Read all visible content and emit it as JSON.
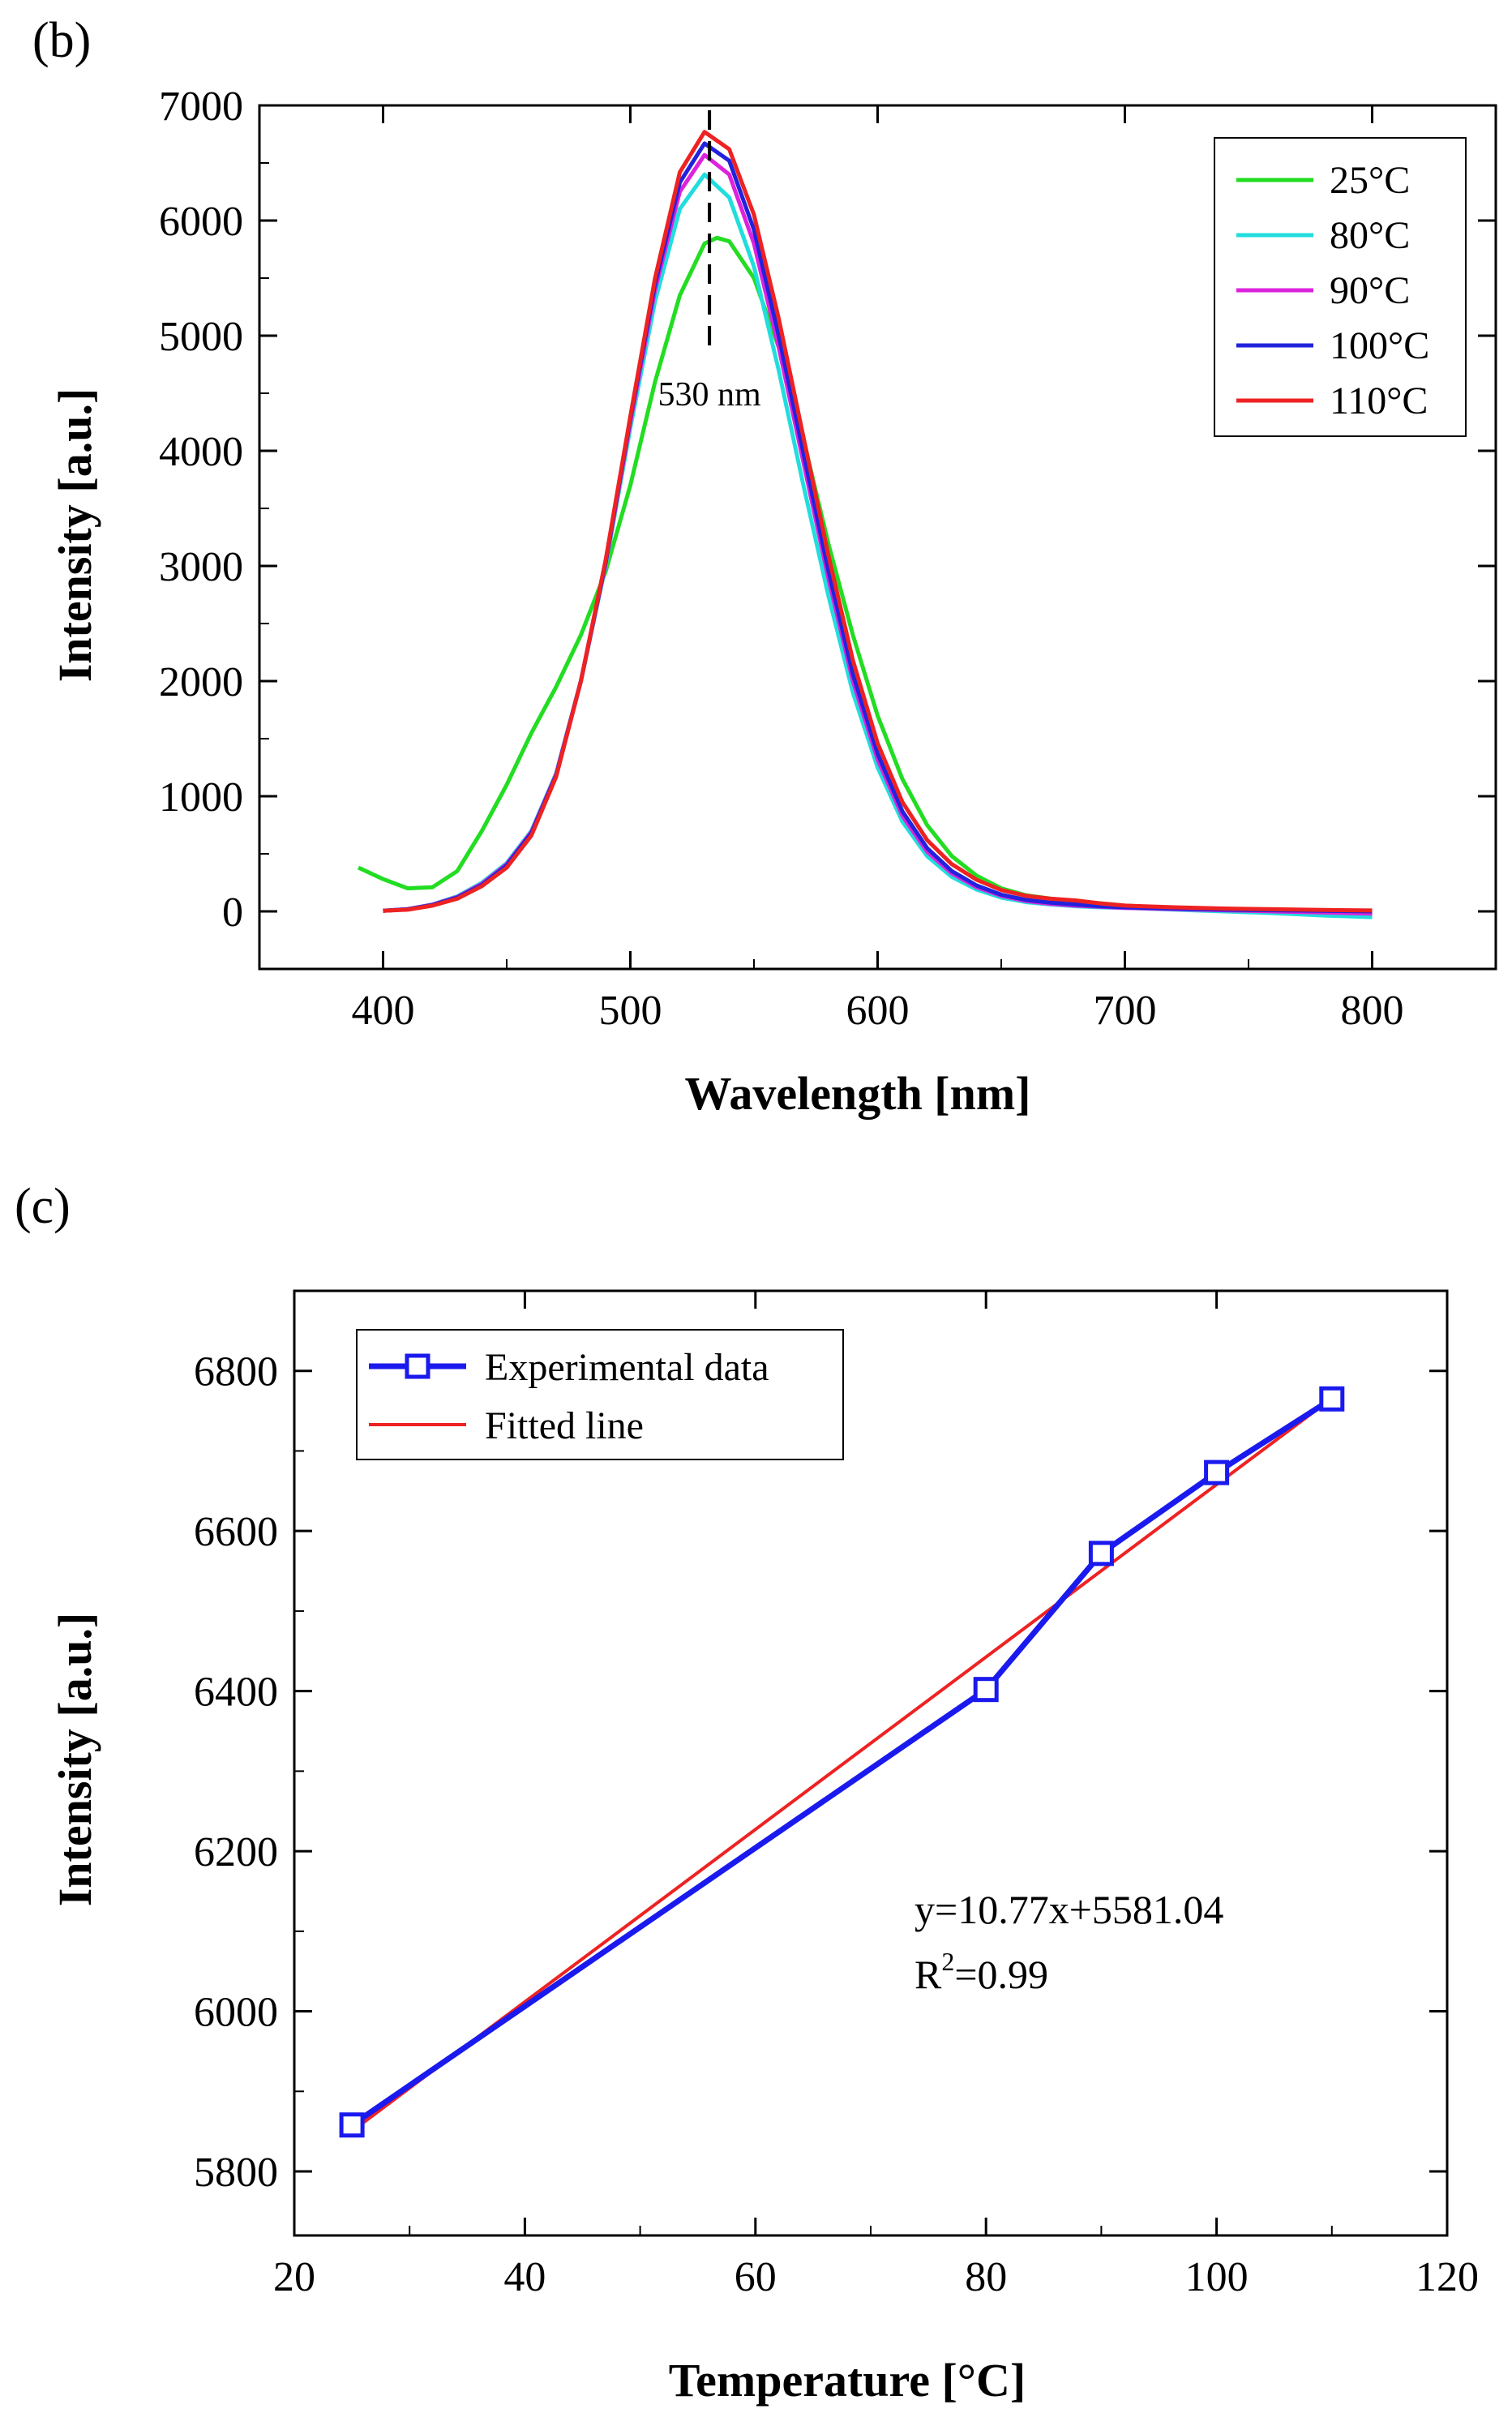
{
  "panel_b_label": "(b)",
  "panel_c_label": "(c)",
  "chart_data": [
    {
      "id": "b",
      "type": "line",
      "title": "",
      "xlabel": "Wavelength [nm]",
      "ylabel": "Intensity [a.u.]",
      "xlim": [
        350,
        850
      ],
      "ylim": [
        -500,
        7000
      ],
      "xticks": [
        400,
        500,
        600,
        700,
        800
      ],
      "xtick_labels": [
        "400",
        "500",
        "600",
        "700",
        "800"
      ],
      "yticks": [
        0,
        1000,
        2000,
        3000,
        4000,
        5000,
        6000,
        7000
      ],
      "ytick_labels": [
        "0",
        "1000",
        "2000",
        "3000",
        "4000",
        "5000",
        "6000",
        "7000"
      ],
      "annotation": {
        "text": "530 nm",
        "x": 532
      },
      "legend_position": "top-right",
      "series": [
        {
          "name": "25°C",
          "color": "#22dd22",
          "x": [
            390,
            400,
            410,
            420,
            430,
            440,
            450,
            460,
            470,
            480,
            490,
            500,
            510,
            520,
            530,
            535,
            540,
            550,
            560,
            570,
            580,
            590,
            600,
            610,
            620,
            630,
            640,
            650,
            660,
            670,
            680,
            690,
            700,
            720,
            740,
            760,
            780,
            800
          ],
          "values": [
            380,
            280,
            200,
            210,
            350,
            700,
            1100,
            1550,
            1950,
            2400,
            2950,
            3700,
            4600,
            5350,
            5800,
            5850,
            5820,
            5500,
            4900,
            4100,
            3200,
            2400,
            1700,
            1150,
            750,
            480,
            310,
            200,
            140,
            110,
            90,
            70,
            50,
            30,
            20,
            15,
            10,
            5
          ]
        },
        {
          "name": "80°C",
          "color": "#22dddd",
          "x": [
            400,
            410,
            420,
            430,
            440,
            450,
            460,
            470,
            480,
            490,
            500,
            510,
            520,
            530,
            540,
            550,
            560,
            570,
            580,
            590,
            600,
            610,
            620,
            630,
            640,
            650,
            660,
            670,
            680,
            690,
            700,
            720,
            740,
            760,
            780,
            800
          ],
          "values": [
            5,
            20,
            60,
            130,
            250,
            420,
            700,
            1200,
            2000,
            3000,
            4200,
            5300,
            6100,
            6400,
            6200,
            5600,
            4700,
            3700,
            2750,
            1900,
            1250,
            780,
            480,
            300,
            190,
            120,
            80,
            60,
            45,
            35,
            30,
            15,
            0,
            -15,
            -35,
            -50
          ]
        },
        {
          "name": "90°C",
          "color": "#dd22dd",
          "x": [
            400,
            410,
            420,
            430,
            440,
            450,
            460,
            470,
            480,
            490,
            500,
            510,
            520,
            530,
            540,
            550,
            560,
            570,
            580,
            590,
            600,
            610,
            620,
            630,
            640,
            650,
            660,
            670,
            680,
            690,
            700,
            720,
            740,
            760,
            780,
            800
          ],
          "values": [
            5,
            20,
            58,
            125,
            240,
            410,
            690,
            1190,
            2000,
            3020,
            4250,
            5400,
            6250,
            6570,
            6400,
            5800,
            4900,
            3900,
            2900,
            2000,
            1320,
            830,
            520,
            330,
            210,
            135,
            90,
            65,
            50,
            40,
            30,
            20,
            10,
            0,
            -10,
            -20
          ]
        },
        {
          "name": "100°C",
          "color": "#2222dd",
          "x": [
            400,
            410,
            420,
            430,
            440,
            450,
            460,
            470,
            480,
            490,
            500,
            510,
            520,
            530,
            540,
            550,
            560,
            570,
            580,
            590,
            600,
            610,
            620,
            630,
            640,
            650,
            660,
            670,
            680,
            690,
            700,
            720,
            740,
            760,
            780,
            800
          ],
          "values": [
            5,
            18,
            55,
            120,
            230,
            400,
            680,
            1180,
            2000,
            3030,
            4280,
            5450,
            6330,
            6670,
            6520,
            5920,
            5000,
            3980,
            2970,
            2060,
            1370,
            870,
            550,
            350,
            225,
            145,
            100,
            75,
            60,
            45,
            35,
            25,
            15,
            10,
            5,
            0
          ]
        },
        {
          "name": "110°C",
          "color": "#ee2222",
          "x": [
            400,
            410,
            420,
            430,
            440,
            450,
            460,
            470,
            480,
            490,
            500,
            510,
            520,
            530,
            540,
            550,
            560,
            570,
            580,
            590,
            600,
            610,
            620,
            630,
            640,
            650,
            660,
            670,
            680,
            690,
            700,
            720,
            740,
            760,
            780,
            800
          ],
          "values": [
            5,
            15,
            50,
            110,
            220,
            380,
            660,
            1170,
            2000,
            3050,
            4300,
            5500,
            6420,
            6770,
            6620,
            6050,
            5150,
            4120,
            3100,
            2180,
            1460,
            950,
            620,
            410,
            275,
            185,
            135,
            110,
            95,
            70,
            50,
            35,
            25,
            18,
            12,
            8
          ]
        }
      ]
    },
    {
      "id": "c",
      "type": "line",
      "title": "",
      "xlabel": "Temperature [°C]",
      "ylabel": "Intensity [a.u.]",
      "xlim": [
        20,
        120
      ],
      "ylim": [
        5720,
        6900
      ],
      "xticks": [
        20,
        40,
        60,
        80,
        100,
        120
      ],
      "xtick_labels": [
        "20",
        "40",
        "60",
        "80",
        "100",
        "120"
      ],
      "yticks": [
        5800,
        6000,
        6200,
        6400,
        6600,
        6800
      ],
      "ytick_labels": [
        "5800",
        "6000",
        "6200",
        "6400",
        "6600",
        "6800"
      ],
      "legend_position": "top-left",
      "series": [
        {
          "name": "Experimental data",
          "color": "#1a1aee",
          "marker": "square",
          "x": [
            25,
            80,
            90,
            100,
            110
          ],
          "values": [
            5858,
            6402,
            6572,
            6673,
            6765
          ]
        },
        {
          "name": "Fitted line",
          "color": "#ee2222",
          "marker": "none",
          "x": [
            25,
            110
          ],
          "values": [
            5850.3,
            6765.7
          ]
        }
      ],
      "equation": "y=10.77x+5581.04",
      "r2_prefix": "R",
      "r2_sup": "2",
      "r2_value": "=0.99"
    }
  ]
}
